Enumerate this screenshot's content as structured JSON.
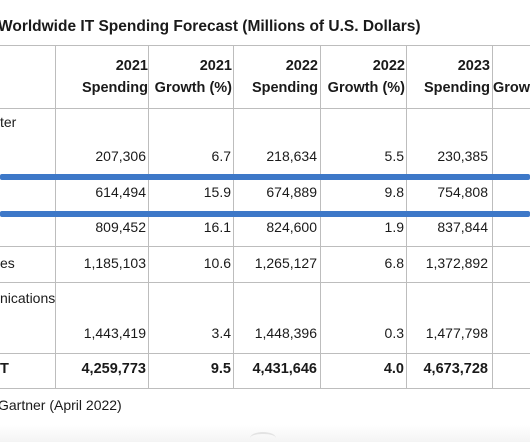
{
  "title": "Worldwide IT Spending Forecast (Millions of U.S. Dollars)",
  "source": "Gartner (April 2022)",
  "columns": [
    {
      "year": "2021",
      "label": "Spending"
    },
    {
      "year": "2021",
      "label": "Growth (%)"
    },
    {
      "year": "2022",
      "label": "Spending"
    },
    {
      "year": "2022",
      "label": "Growth (%)"
    },
    {
      "year": "2023",
      "label": "Spending"
    },
    {
      "year": "",
      "label": "Grow"
    }
  ],
  "rows": [
    {
      "label": "ter",
      "values": [
        "207,306",
        "6.7",
        "218,634",
        "5.5",
        "230,385"
      ]
    },
    {
      "label": "",
      "values": [
        "614,494",
        "15.9",
        "674,889",
        "9.8",
        "754,808"
      ]
    },
    {
      "label": "",
      "values": [
        "809,452",
        "16.1",
        "824,600",
        "1.9",
        "837,844"
      ]
    },
    {
      "label": "es",
      "values": [
        "1,185,103",
        "10.6",
        "1,265,127",
        "6.8",
        "1,372,892"
      ]
    },
    {
      "label": "nications",
      "values": [
        "1,443,419",
        "3.4",
        "1,448,396",
        "0.3",
        "1,477,798"
      ]
    },
    {
      "label": "T",
      "values": [
        "4,259,773",
        "9.5",
        "4,431,646",
        "4.0",
        "4,673,728"
      ]
    }
  ],
  "colors": {
    "highlight": "#3d78c8",
    "grid": "#bdbdbd"
  }
}
